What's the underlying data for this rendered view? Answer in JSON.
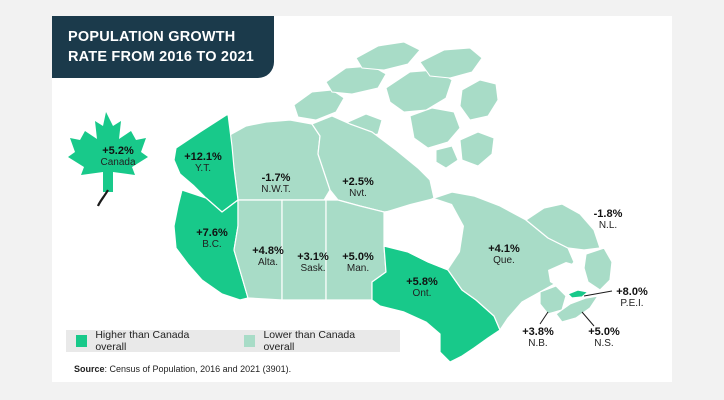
{
  "title": {
    "line1": "POPULATION GROWTH",
    "line2": "RATE FROM 2016 TO 2021"
  },
  "colors": {
    "higher": "#18c98a",
    "lower": "#a8dcc7",
    "ocean": "#ffffff",
    "dark": "#1b3a4b",
    "border": "#ffffff"
  },
  "canada": {
    "value": "+5.2%",
    "name": "Canada",
    "icon": "maple-leaf-icon"
  },
  "regions": [
    {
      "key": "yt",
      "value": "+12.1%",
      "name": "Y.T.",
      "category": "higher"
    },
    {
      "key": "nwt",
      "value": "-1.7%",
      "name": "N.W.T.",
      "category": "lower"
    },
    {
      "key": "nvt",
      "value": "+2.5%",
      "name": "Nvt.",
      "category": "lower"
    },
    {
      "key": "bc",
      "value": "+7.6%",
      "name": "B.C.",
      "category": "higher"
    },
    {
      "key": "alta",
      "value": "+4.8%",
      "name": "Alta.",
      "category": "lower"
    },
    {
      "key": "sask",
      "value": "+3.1%",
      "name": "Sask.",
      "category": "lower"
    },
    {
      "key": "man",
      "value": "+5.0%",
      "name": "Man.",
      "category": "lower"
    },
    {
      "key": "ont",
      "value": "+5.8%",
      "name": "Ont.",
      "category": "higher"
    },
    {
      "key": "que",
      "value": "+4.1%",
      "name": "Que.",
      "category": "lower"
    },
    {
      "key": "nl",
      "value": "-1.8%",
      "name": "N.L.",
      "category": "lower"
    },
    {
      "key": "pei",
      "value": "+8.0%",
      "name": "P.E.I.",
      "category": "higher"
    },
    {
      "key": "nb",
      "value": "+3.8%",
      "name": "N.B.",
      "category": "lower"
    },
    {
      "key": "ns",
      "value": "+5.0%",
      "name": "N.S.",
      "category": "lower"
    }
  ],
  "legend": {
    "higher": "Higher than Canada overall",
    "lower": "Lower than Canada overall"
  },
  "source": {
    "label": "Source",
    "text": ": Census of Population, 2016 and 2021 (3901)."
  }
}
